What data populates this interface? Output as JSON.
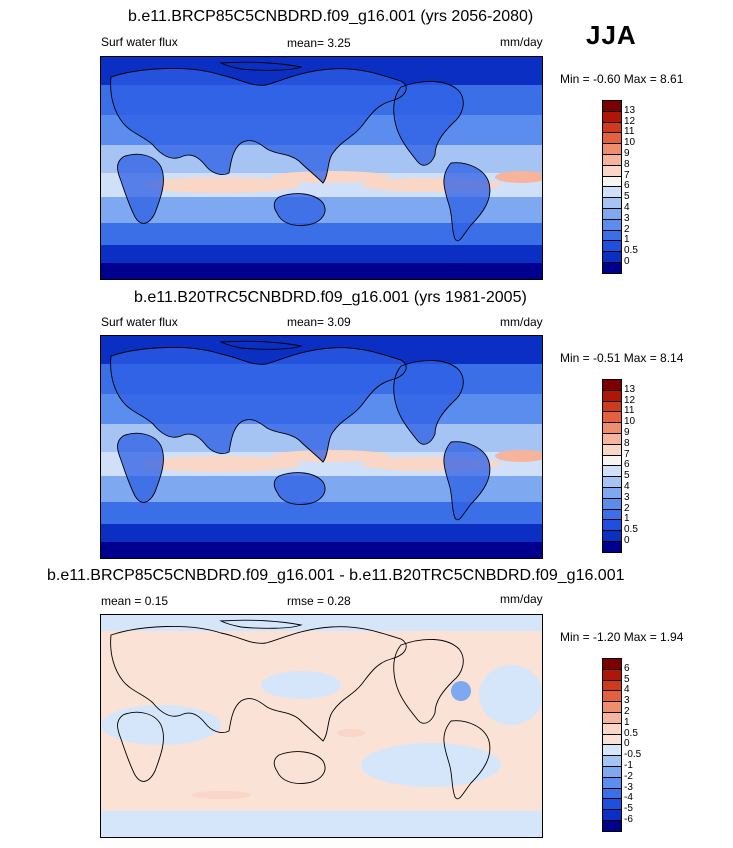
{
  "season": "JJA",
  "panels": [
    {
      "title": "b.e11.BRCP85C5CNBDRD.f09_g16.001 (yrs 2056-2080)",
      "left_label": "Surf water flux",
      "mean_text": "mean=   3.25",
      "units": "mm/day",
      "minmax": "Min =  -0.60 Max =   8.61"
    },
    {
      "title": "b.e11.B20TRC5CNBDRD.f09_g16.001 (yrs 1981-2005)",
      "left_label": "Surf water flux",
      "mean_text": "mean=   3.09",
      "units": "mm/day",
      "minmax": "Min =  -0.51 Max =   8.14"
    },
    {
      "title": "b.e11.BRCP85C5CNBDRD.f09_g16.001 - b.e11.B20TRC5CNBDRD.f09_g16.001",
      "mean_text": "mean =   0.15",
      "rmse_text": "rmse =   0.28",
      "units": "mm/day",
      "minmax": "Min =  -1.20 Max =   1.94"
    }
  ],
  "chart_data": [
    {
      "type": "heatmap",
      "title": "b.e11.BRCP85C5CNBDRD.f09_g16.001 (yrs 2056-2080)",
      "variable": "Surf water flux",
      "units": "mm/day",
      "mean": 3.25,
      "min": -0.6,
      "max": 8.61,
      "colorbar": {
        "levels": [
          "0",
          "0.5",
          "1",
          "2",
          "3",
          "4",
          "5",
          "6",
          "7",
          "8",
          "9",
          "10",
          "11",
          "12",
          "13"
        ],
        "colors": [
          "#00008f",
          "#0b2fc2",
          "#1f4fe0",
          "#3a6fe8",
          "#5a8ded",
          "#7ea9f0",
          "#a5c4f4",
          "#cfe0f8",
          "#f7f5f2",
          "#f9d6c6",
          "#f5b49b",
          "#ef8d6f",
          "#e4603f",
          "#cf3a1c",
          "#b01608",
          "#7d0000"
        ]
      }
    },
    {
      "type": "heatmap",
      "title": "b.e11.B20TRC5CNBDRD.f09_g16.001 (yrs 1981-2005)",
      "variable": "Surf water flux",
      "units": "mm/day",
      "mean": 3.09,
      "min": -0.51,
      "max": 8.14,
      "colorbar": {
        "levels": [
          "0",
          "0.5",
          "1",
          "2",
          "3",
          "4",
          "5",
          "6",
          "7",
          "8",
          "9",
          "10",
          "11",
          "12",
          "13"
        ],
        "colors": [
          "#00008f",
          "#0b2fc2",
          "#1f4fe0",
          "#3a6fe8",
          "#5a8ded",
          "#7ea9f0",
          "#a5c4f4",
          "#cfe0f8",
          "#f7f5f2",
          "#f9d6c6",
          "#f5b49b",
          "#ef8d6f",
          "#e4603f",
          "#cf3a1c",
          "#b01608",
          "#7d0000"
        ]
      }
    },
    {
      "type": "heatmap",
      "title": "b.e11.BRCP85C5CNBDRD.f09_g16.001 - b.e11.B20TRC5CNBDRD.f09_g16.001",
      "units": "mm/day",
      "mean": 0.15,
      "rmse": 0.28,
      "min": -1.2,
      "max": 1.94,
      "colorbar": {
        "levels": [
          "-6",
          "-5",
          "-4",
          "-3",
          "-2",
          "-1",
          "-0.5",
          "0",
          "0.5",
          "1",
          "2",
          "3",
          "4",
          "5",
          "6"
        ],
        "colors": [
          "#00008f",
          "#0b2fc2",
          "#1f4fe0",
          "#3a6fe8",
          "#5a8ded",
          "#7ea9f0",
          "#a5c4f4",
          "#d6e6fa",
          "#fbe2d6",
          "#f9d6c6",
          "#f5b49b",
          "#ef8d6f",
          "#e4603f",
          "#cf3a1c",
          "#b01608",
          "#7d0000"
        ]
      }
    }
  ]
}
